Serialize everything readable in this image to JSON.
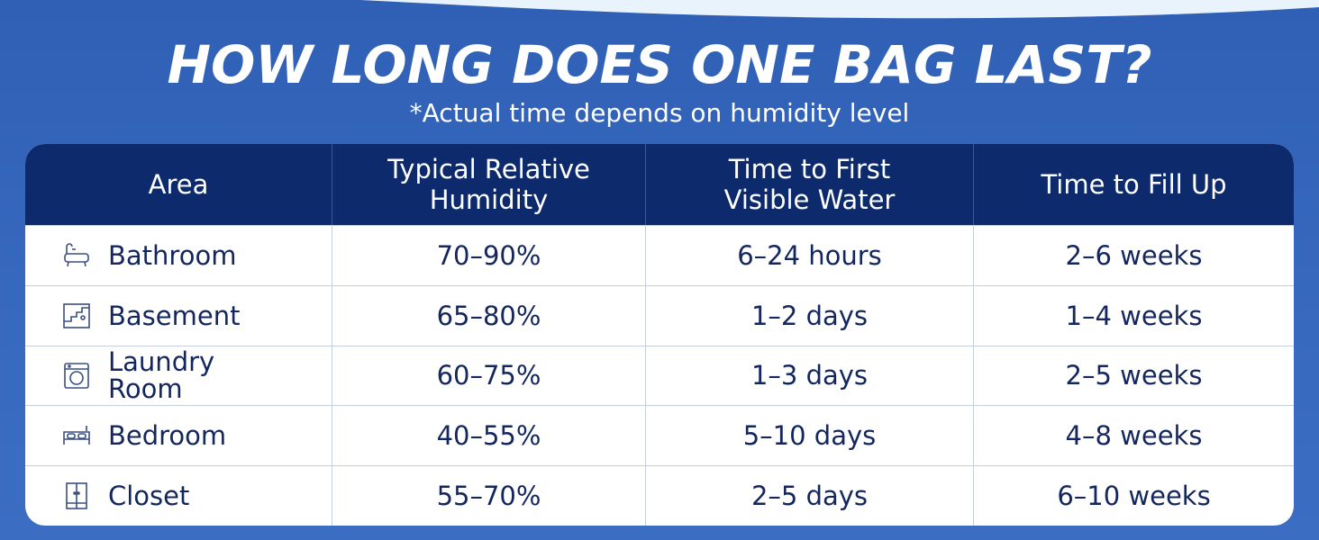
{
  "header": {
    "title": "HOW LONG DOES ONE BAG LAST?",
    "subtitle": "*Actual time depends on humidity level"
  },
  "table": {
    "columns": [
      "Area",
      "Typical Relative Humidity",
      "Time to First Visible Water",
      "Time to Fill Up"
    ],
    "rows": [
      [
        "Bathroom",
        "70–90%",
        "6–24 hours",
        "2–6 weeks"
      ],
      [
        "Basement",
        "65–80%",
        "1–2 days",
        "1–4 weeks"
      ],
      [
        "Laundry Room",
        "60–75%",
        "1–3 days",
        "2–5 weeks"
      ],
      [
        "Bedroom",
        "40–55%",
        "5–10 days",
        "4–8 weeks"
      ],
      [
        "Closet",
        "55–70%",
        "2–5 days",
        "6–10 weeks"
      ]
    ]
  }
}
